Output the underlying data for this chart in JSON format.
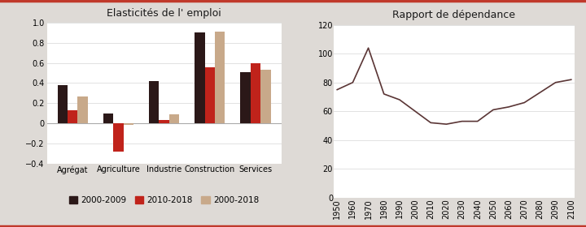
{
  "bar_title": "Elasticités de l' emploi",
  "line_title": "Rapport de dépendance",
  "categories": [
    "Agrégat",
    "Agriculture",
    "Industrie",
    "Construction",
    "Services"
  ],
  "series_2000_2009": [
    0.38,
    0.1,
    0.42,
    0.9,
    0.51
  ],
  "series_2010_2018": [
    0.13,
    -0.28,
    0.03,
    0.56,
    0.6
  ],
  "series_2000_2018": [
    0.27,
    -0.02,
    0.09,
    0.91,
    0.53
  ],
  "color_2000_2009": "#2b1818",
  "color_2010_2018": "#c0231b",
  "color_2000_2018": "#c8a98a",
  "legend_labels": [
    "2000-2009",
    "2010-2018",
    "2000-2018"
  ],
  "bar_ylim": [
    -0.4,
    1.0
  ],
  "bar_yticks": [
    -0.4,
    -0.2,
    0.0,
    0.2,
    0.4,
    0.6,
    0.8,
    1.0
  ],
  "line_x": [
    1950,
    1960,
    1970,
    1980,
    1990,
    2000,
    2010,
    2020,
    2030,
    2040,
    2050,
    2060,
    2070,
    2080,
    2090,
    2100
  ],
  "line_y": [
    75,
    80,
    104,
    72,
    68,
    60,
    52,
    51,
    53,
    53,
    61,
    63,
    66,
    73,
    80,
    82
  ],
  "line_color": "#5a3535",
  "line_ylim": [
    0,
    120
  ],
  "line_yticks": [
    0,
    20,
    40,
    60,
    80,
    100,
    120
  ],
  "line_xticks": [
    1950,
    1960,
    1970,
    1980,
    1990,
    2000,
    2010,
    2020,
    2030,
    2040,
    2050,
    2060,
    2070,
    2080,
    2090,
    2100
  ],
  "background_color": "#dedad6",
  "plot_bg_color": "#ffffff",
  "border_color": "#c0392b",
  "title_fontsize": 9,
  "tick_fontsize": 7,
  "legend_fontsize": 7.5,
  "bar_width": 0.22
}
